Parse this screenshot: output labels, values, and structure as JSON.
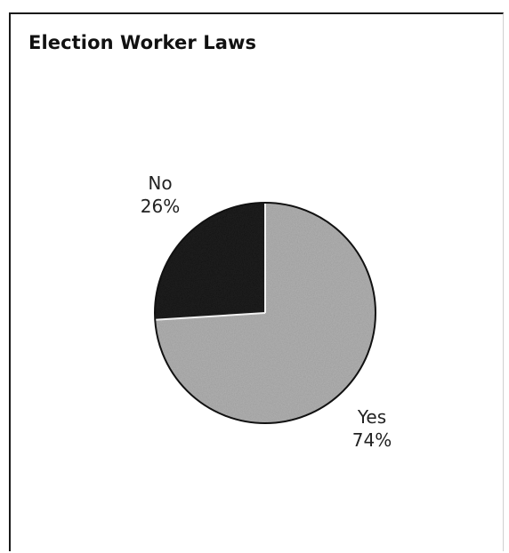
{
  "chart_data": {
    "type": "pie",
    "title": "Election Worker Laws",
    "slices": [
      {
        "label": "Yes",
        "value": 74,
        "value_label": "74%",
        "color": "#b3b3b3"
      },
      {
        "label": "No",
        "value": 26,
        "value_label": "26%",
        "color": "#1c1c1c"
      }
    ],
    "legend": "none"
  }
}
